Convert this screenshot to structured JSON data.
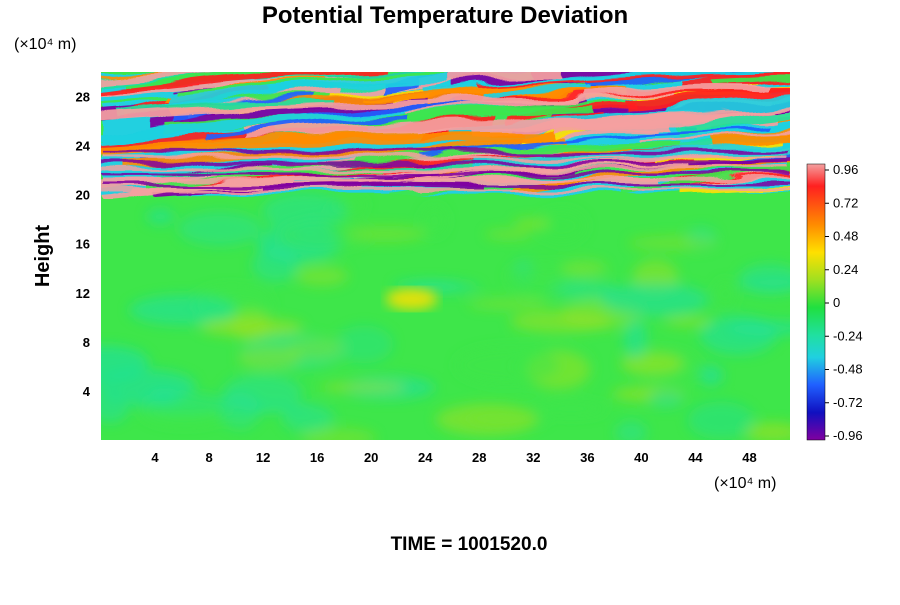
{
  "chart_data": {
    "type": "heatmap",
    "title": "Potential Temperature Deviation",
    "ylabel": "Height",
    "y_unit": "(×10⁴ m)",
    "x_unit": "(×10⁴ m)",
    "x_ticks": [
      4,
      8,
      12,
      16,
      20,
      24,
      28,
      32,
      36,
      40,
      44,
      48
    ],
    "y_ticks": [
      4,
      8,
      12,
      16,
      20,
      24,
      28
    ],
    "xlim": [
      0,
      51
    ],
    "ylim": [
      0,
      30
    ],
    "colorbar": {
      "ticks": [
        "0.96",
        "0.72",
        "0.48",
        "0.24",
        "0",
        "-0.24",
        "-0.48",
        "-0.72",
        "-0.96"
      ],
      "range": [
        -1.0,
        1.0
      ]
    },
    "footer": "TIME = 1001520.0",
    "features": {
      "turbulent_band_bottom": 20,
      "turbulent_band_top": 30,
      "warm_spot": {
        "x": 23,
        "y": 11.5,
        "value": 0.35
      },
      "background_value": 0.02
    }
  }
}
